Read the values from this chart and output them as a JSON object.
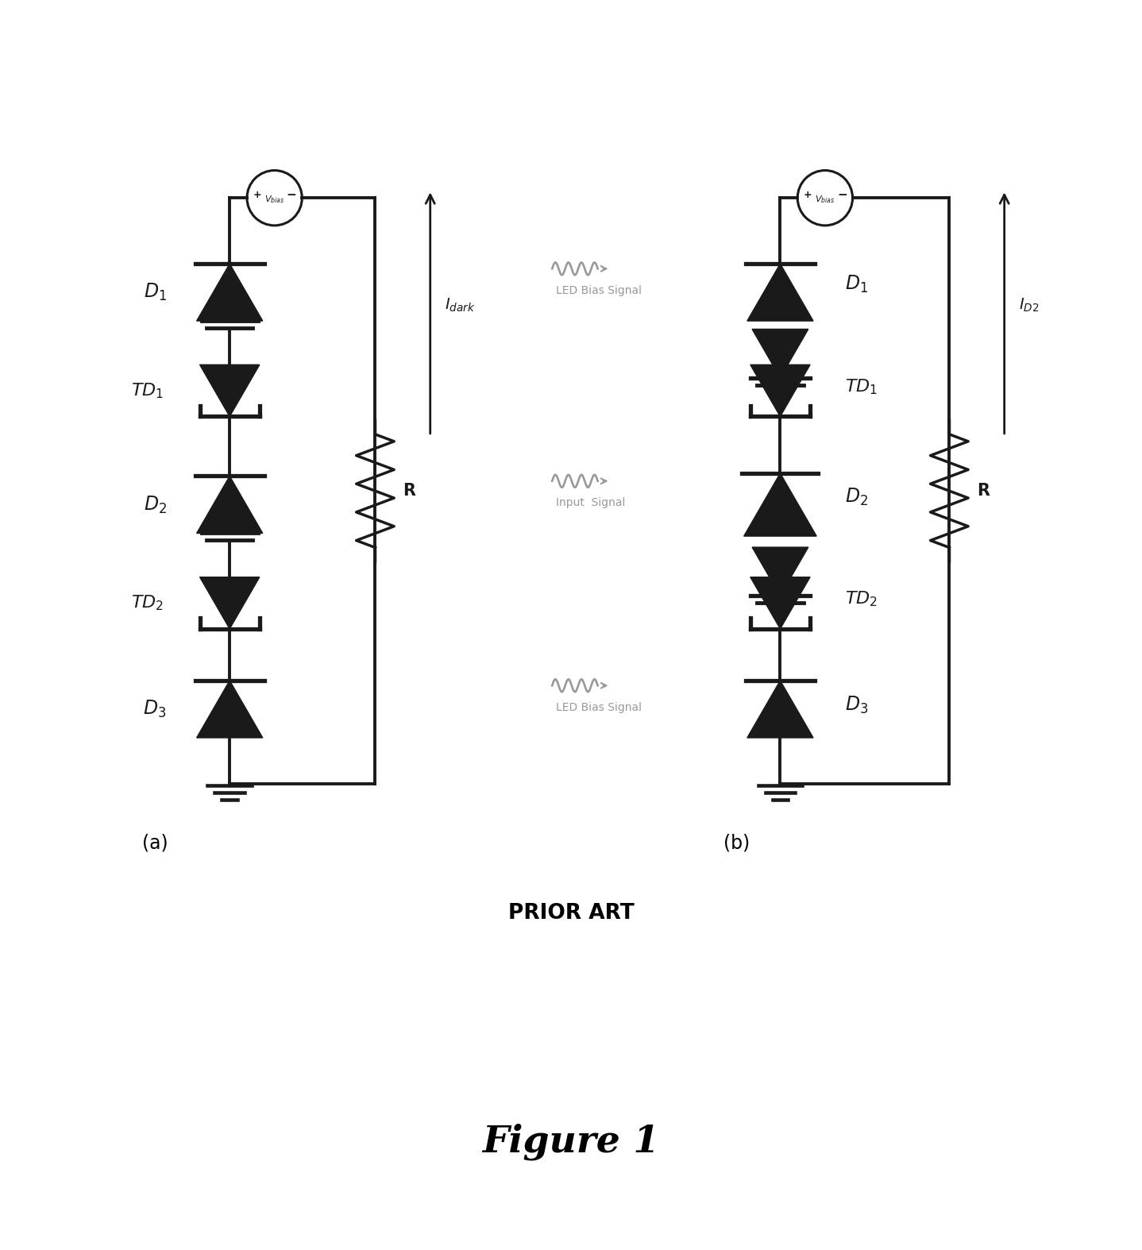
{
  "bg_color": "#ffffff",
  "fig_width": 14.38,
  "fig_height": 15.74,
  "title": "Figure 1",
  "prior_art": "PRIOR ART",
  "label_a": "(a)",
  "label_b": "(b)",
  "circuit_color": "#1a1a1a",
  "label_color": "#000000",
  "signal_color": "#999999"
}
